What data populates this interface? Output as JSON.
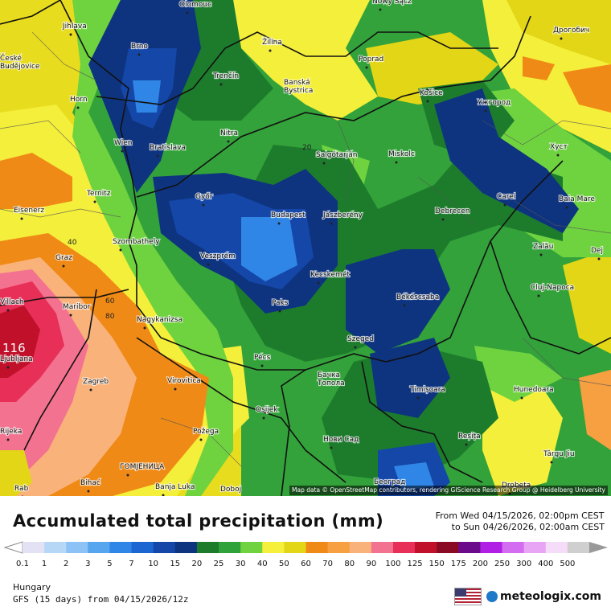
{
  "map": {
    "attribution": "Map data © OpenStreetMap contributors, rendering GIScience Research Group @ Heidelberg University",
    "max_value_label": "116",
    "contour_labels": [
      "20",
      "40",
      "60",
      "80"
    ],
    "cities": [
      {
        "name": "Olomouc"
      },
      {
        "name": "Nowy Sącz"
      },
      {
        "name": "Jihlava"
      },
      {
        "name": "Brno"
      },
      {
        "name": "Žilina"
      },
      {
        "name": "Poprad"
      },
      {
        "name": "Дрогобич"
      },
      {
        "name": "České Budějovice"
      },
      {
        "name": "Horn"
      },
      {
        "name": "Trenčín"
      },
      {
        "name": "Banská Bystrica"
      },
      {
        "name": "Košice"
      },
      {
        "name": "Ужгород"
      },
      {
        "name": "Wien"
      },
      {
        "name": "Bratislava"
      },
      {
        "name": "Nitra"
      },
      {
        "name": "Salgótarján"
      },
      {
        "name": "Miskolc"
      },
      {
        "name": "Хуст"
      },
      {
        "name": "Ternitz"
      },
      {
        "name": "Győr"
      },
      {
        "name": "Carei"
      },
      {
        "name": "Baia Mare"
      },
      {
        "name": "Eisenerz"
      },
      {
        "name": "Budapest"
      },
      {
        "name": "Jászberény"
      },
      {
        "name": "Debrecen"
      },
      {
        "name": "Szombathely"
      },
      {
        "name": "Zalău"
      },
      {
        "name": "Dej"
      },
      {
        "name": "Graz"
      },
      {
        "name": "Veszprém"
      },
      {
        "name": "Kecskemét"
      },
      {
        "name": "Cluj-Napoca"
      },
      {
        "name": "Villach"
      },
      {
        "name": "Maribor"
      },
      {
        "name": "Paks"
      },
      {
        "name": "Békéscsaba"
      },
      {
        "name": "Nagykanizsa"
      },
      {
        "name": "Szeged"
      },
      {
        "name": "Ljubljana"
      },
      {
        "name": "Pécs"
      },
      {
        "name": "Zagreb"
      },
      {
        "name": "Virovitica"
      },
      {
        "name": "Бачка Топола"
      },
      {
        "name": "Timișoara"
      },
      {
        "name": "Hunedoara"
      },
      {
        "name": "Osijek"
      },
      {
        "name": "Požega"
      },
      {
        "name": "Reșița"
      },
      {
        "name": "Нови Сад"
      },
      {
        "name": "Rijeka"
      },
      {
        "name": "Târgu Jiu"
      },
      {
        "name": "ГОМЈЕНИЦА"
      },
      {
        "name": "Bihać"
      },
      {
        "name": "Banja Luka"
      },
      {
        "name": "Doboj"
      },
      {
        "name": "Београд"
      },
      {
        "name": "Drobeta"
      },
      {
        "name": "Rab"
      }
    ]
  },
  "legend": {
    "title": "Accumulated total precipitation (mm)",
    "from_text": "From Wed 04/15/2026, 02:00pm CEST",
    "to_text": "to Sun 04/26/2026, 02:00am CEST",
    "scale": [
      {
        "label": "0.1",
        "color": "#e2e2f4"
      },
      {
        "label": "1",
        "color": "#b7d7f7"
      },
      {
        "label": "2",
        "color": "#8cc2f5"
      },
      {
        "label": "3",
        "color": "#55a5ef"
      },
      {
        "label": "5",
        "color": "#2f86e6"
      },
      {
        "label": "7",
        "color": "#1b66d1"
      },
      {
        "label": "10",
        "color": "#1447a8"
      },
      {
        "label": "15",
        "color": "#0e3480"
      },
      {
        "label": "20",
        "color": "#1d7c2c"
      },
      {
        "label": "25",
        "color": "#2fa23a"
      },
      {
        "label": "30",
        "color": "#6fd23f"
      },
      {
        "label": "40",
        "color": "#f4f03c"
      },
      {
        "label": "50",
        "color": "#e3d617"
      },
      {
        "label": "60",
        "color": "#f08a16"
      },
      {
        "label": "70",
        "color": "#f6a042"
      },
      {
        "label": "80",
        "color": "#f9b27a"
      },
      {
        "label": "90",
        "color": "#f3728f"
      },
      {
        "label": "100",
        "color": "#e82f57"
      },
      {
        "label": "125",
        "color": "#c0102a"
      },
      {
        "label": "150",
        "color": "#8a0a24"
      },
      {
        "label": "175",
        "color": "#6b0a8a"
      },
      {
        "label": "200",
        "color": "#b11ee6"
      },
      {
        "label": "250",
        "color": "#d36cf0"
      },
      {
        "label": "300",
        "color": "#e8a4f5"
      },
      {
        "label": "400",
        "color": "#f5dcf8"
      },
      {
        "label": "500",
        "color": "#cfcfcf"
      }
    ],
    "region": "Hungary",
    "model": "GFS (15 days) from 04/15/2026/12z",
    "brand": "meteologix.com",
    "flag_icon": "us-flag-icon"
  }
}
